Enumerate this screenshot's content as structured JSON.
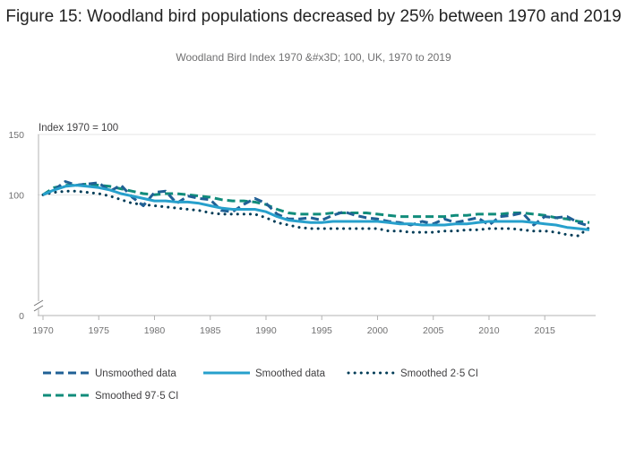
{
  "chart_data": {
    "type": "line",
    "title": "Figure 15: Woodland bird populations decreased by 25% between 1970 and 2019",
    "subtitle": "Woodland Bird Index 1970 &#x3D; 100, UK, 1970 to 2019",
    "ylabel": "Index 1970 = 100",
    "xlabel": "",
    "ylim": [
      0,
      150
    ],
    "xlim": [
      1970,
      2019
    ],
    "yticks": [
      0,
      100,
      150
    ],
    "xticks": [
      1970,
      1975,
      1980,
      1985,
      1990,
      1995,
      2000,
      2005,
      2010,
      2015
    ],
    "axis_break": true,
    "x": [
      1970,
      1971,
      1972,
      1973,
      1974,
      1975,
      1976,
      1977,
      1978,
      1979,
      1980,
      1981,
      1982,
      1983,
      1984,
      1985,
      1986,
      1987,
      1988,
      1989,
      1990,
      1991,
      1992,
      1993,
      1994,
      1995,
      1996,
      1997,
      1998,
      1999,
      2000,
      2001,
      2002,
      2003,
      2004,
      2005,
      2006,
      2007,
      2008,
      2009,
      2010,
      2011,
      2012,
      2013,
      2014,
      2015,
      2016,
      2017,
      2018,
      2019
    ],
    "series": [
      {
        "name": "Unsmoothed data",
        "color": "#206095",
        "style": "dashed",
        "values": [
          100,
          104,
          111,
          108,
          109,
          110,
          103,
          108,
          98,
          91,
          102,
          103,
          93,
          99,
          97,
          96,
          87,
          86,
          92,
          97,
          93,
          84,
          80,
          80,
          81,
          79,
          83,
          86,
          83,
          81,
          80,
          78,
          77,
          75,
          78,
          76,
          80,
          77,
          79,
          81,
          75,
          82,
          83,
          85,
          75,
          82,
          81,
          82,
          77,
          74
        ]
      },
      {
        "name": "Smoothed data",
        "color": "#27a0cc",
        "style": "solid",
        "values": [
          100,
          104,
          107,
          108,
          107,
          106,
          104,
          101,
          99,
          97,
          95,
          95,
          94,
          94,
          93,
          91,
          89,
          88,
          88,
          88,
          86,
          82,
          79,
          78,
          77,
          77,
          78,
          78,
          78,
          78,
          78,
          77,
          76,
          76,
          75,
          75,
          75,
          76,
          76,
          77,
          78,
          78,
          78,
          78,
          77,
          76,
          75,
          73,
          72,
          71
        ]
      },
      {
        "name": "Smoothed 2·5 CI",
        "color": "#003c57",
        "style": "dotted",
        "values": [
          100,
          102,
          103,
          103,
          102,
          101,
          99,
          96,
          93,
          92,
          91,
          90,
          89,
          88,
          87,
          85,
          84,
          84,
          84,
          84,
          81,
          77,
          75,
          73,
          72,
          72,
          72,
          72,
          72,
          72,
          72,
          70,
          70,
          69,
          69,
          69,
          70,
          70,
          71,
          71,
          72,
          72,
          72,
          71,
          70,
          70,
          69,
          67,
          66,
          73
        ]
      },
      {
        "name": "Smoothed 97·5 CI",
        "color": "#118c7b",
        "style": "dashed",
        "values": [
          100,
          106,
          108,
          108,
          109,
          108,
          107,
          105,
          103,
          101,
          100,
          101,
          101,
          100,
          99,
          98,
          96,
          95,
          95,
          94,
          92,
          88,
          85,
          84,
          84,
          84,
          85,
          85,
          85,
          85,
          84,
          83,
          82,
          82,
          82,
          82,
          82,
          83,
          83,
          84,
          84,
          84,
          85,
          85,
          84,
          83,
          81,
          80,
          78,
          77
        ]
      }
    ],
    "legend_position": "bottom"
  }
}
